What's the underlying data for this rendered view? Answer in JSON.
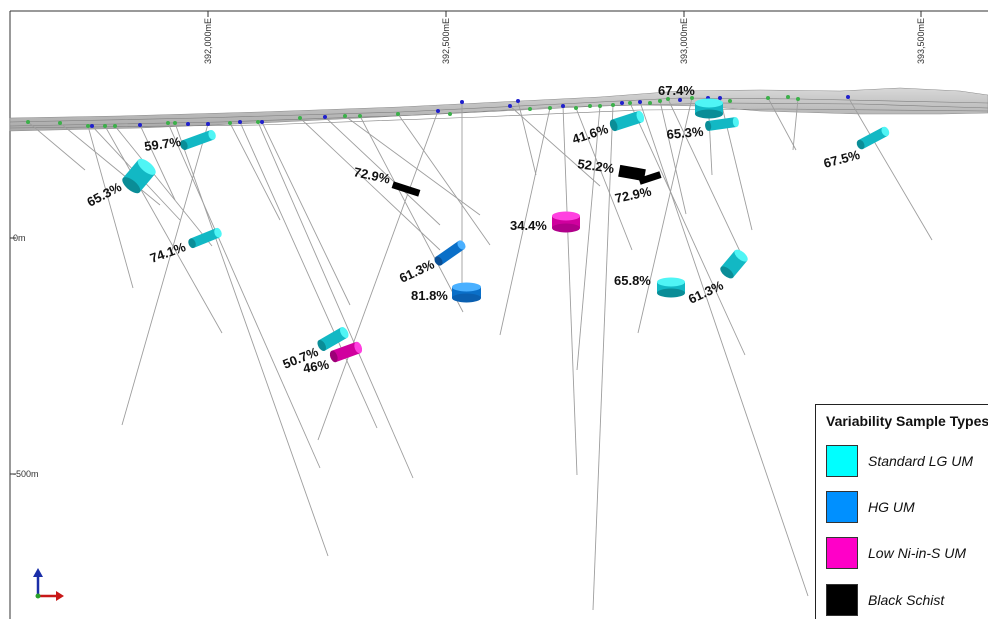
{
  "easting_labels": [
    "392,000mE",
    "392,500mE",
    "393,000mE",
    "393,500mE"
  ],
  "elevation_labels": [
    "0m",
    "-500m"
  ],
  "legend": {
    "title": "Variability Sample Types",
    "items": [
      {
        "label": "Standard LG UM",
        "color": "#00FFFF"
      },
      {
        "label": "HG UM",
        "color": "#0090FF"
      },
      {
        "label": "Low Ni-in-S UM",
        "color": "#FF00C8"
      },
      {
        "label": "Black Schist",
        "color": "#000000"
      }
    ]
  },
  "samples": [
    {
      "label": "59.7%",
      "type": "Standard LG UM"
    },
    {
      "label": "65.3%",
      "type": "Standard LG UM"
    },
    {
      "label": "74.1%",
      "type": "Standard LG UM"
    },
    {
      "label": "72.9%",
      "type": "Black Schist"
    },
    {
      "label": "61.3%",
      "type": "HG UM"
    },
    {
      "label": "81.8%",
      "type": "HG UM"
    },
    {
      "label": "50.7%",
      "type": "Standard LG UM"
    },
    {
      "label": "46%",
      "type": "Low Ni-in-S UM"
    },
    {
      "label": "34.4%",
      "type": "Low Ni-in-S UM"
    },
    {
      "label": "41.6%",
      "type": "Standard LG UM"
    },
    {
      "label": "52.2%",
      "type": "Black Schist"
    },
    {
      "label": "72.9%",
      "type": "Black Schist"
    },
    {
      "label": "67.4%",
      "type": "Standard LG UM"
    },
    {
      "label": "65.3%",
      "type": "Standard LG UM"
    },
    {
      "label": "67.5%",
      "type": "Standard LG UM"
    },
    {
      "label": "65.8%",
      "type": "Standard LG UM"
    },
    {
      "label": "61.3%",
      "type": "Standard LG UM"
    }
  ]
}
